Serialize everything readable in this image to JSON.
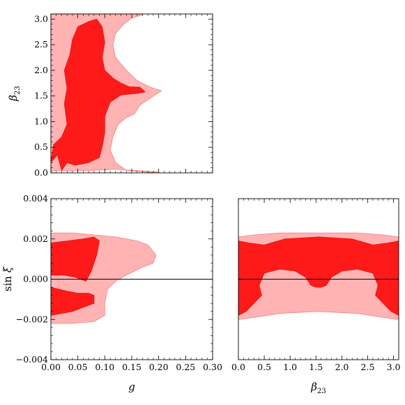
{
  "chart_data": [
    {
      "type": "contour",
      "panel": "top-left",
      "xlabel": "",
      "ylabel": "β23",
      "xlim": [
        0,
        0.3
      ],
      "ylim": [
        0,
        3.1
      ],
      "xticks": [],
      "yticks": [
        "0.0",
        "0.5",
        "1.0",
        "1.5",
        "2.0",
        "2.5",
        "3.0"
      ],
      "ytick_values": [
        0.0,
        0.5,
        1.0,
        1.5,
        2.0,
        2.5,
        3.0
      ],
      "regions": [
        {
          "level": "outer",
          "color": "#ffb3b3",
          "points": [
            [
              0,
              0
            ],
            [
              0.005,
              0.05
            ],
            [
              0.04,
              0.04
            ],
            [
              0.08,
              0.05
            ],
            [
              0.12,
              0.07
            ],
            [
              0.17,
              0.04
            ],
            [
              0.2,
              0.02
            ],
            [
              0.2,
              0.0
            ],
            [
              0.17,
              0.02
            ],
            [
              0.14,
              0.05
            ],
            [
              0.12,
              0.2
            ],
            [
              0.11,
              0.45
            ],
            [
              0.115,
              0.7
            ],
            [
              0.125,
              0.95
            ],
            [
              0.14,
              1.08
            ],
            [
              0.155,
              1.15
            ],
            [
              0.165,
              1.32
            ],
            [
              0.185,
              1.46
            ],
            [
              0.205,
              1.6
            ],
            [
              0.185,
              1.67
            ],
            [
              0.16,
              1.8
            ],
            [
              0.14,
              2.0
            ],
            [
              0.12,
              2.25
            ],
            [
              0.115,
              2.5
            ],
            [
              0.12,
              2.72
            ],
            [
              0.135,
              2.9
            ],
            [
              0.15,
              3.02
            ],
            [
              0.17,
              3.08
            ],
            [
              0.17,
              3.1
            ],
            [
              0.0,
              3.1
            ]
          ]
        },
        {
          "level": "inner",
          "color": "#ff1a1a",
          "points": [
            [
              0.0,
              0.2
            ],
            [
              0.005,
              0.55
            ],
            [
              0.02,
              0.7
            ],
            [
              0.03,
              0.95
            ],
            [
              0.025,
              1.35
            ],
            [
              0.03,
              1.65
            ],
            [
              0.025,
              2.0
            ],
            [
              0.035,
              2.3
            ],
            [
              0.04,
              2.6
            ],
            [
              0.05,
              2.85
            ],
            [
              0.07,
              2.95
            ],
            [
              0.085,
              3.0
            ],
            [
              0.095,
              2.85
            ],
            [
              0.1,
              2.55
            ],
            [
              0.095,
              2.25
            ],
            [
              0.1,
              2.0
            ],
            [
              0.115,
              1.85
            ],
            [
              0.13,
              1.75
            ],
            [
              0.145,
              1.68
            ],
            [
              0.165,
              1.67
            ],
            [
              0.175,
              1.58
            ],
            [
              0.16,
              1.55
            ],
            [
              0.13,
              1.52
            ],
            [
              0.11,
              1.38
            ],
            [
              0.1,
              1.1
            ],
            [
              0.1,
              0.78
            ],
            [
              0.095,
              0.5
            ],
            [
              0.09,
              0.3
            ],
            [
              0.07,
              0.2
            ],
            [
              0.045,
              0.15
            ],
            [
              0.03,
              0.2
            ],
            [
              0.02,
              0.05
            ],
            [
              0.012,
              0.35
            ]
          ]
        }
      ]
    },
    {
      "type": "contour",
      "panel": "bottom-left",
      "xlabel": "g",
      "ylabel": "sin ξ",
      "xlim": [
        0,
        0.3
      ],
      "ylim": [
        -0.004,
        0.004
      ],
      "xticks": [
        "0.00",
        "0.05",
        "0.10",
        "0.15",
        "0.20",
        "0.25",
        "0.30"
      ],
      "xtick_values": [
        0,
        0.05,
        0.1,
        0.15,
        0.2,
        0.25,
        0.3
      ],
      "yticks": [
        "0.004",
        "0.002",
        "0.000",
        "−0.002",
        "−0.004"
      ],
      "ytick_values": [
        0.004,
        0.002,
        0.0,
        -0.002,
        -0.004
      ],
      "hline": 0.0,
      "regions": [
        {
          "level": "outer",
          "color": "#ffb3b3",
          "points": [
            [
              0,
              0.0023
            ],
            [
              0.04,
              0.0023
            ],
            [
              0.08,
              0.0022
            ],
            [
              0.12,
              0.0021
            ],
            [
              0.16,
              0.0019
            ],
            [
              0.18,
              0.0017
            ],
            [
              0.195,
              0.0012
            ],
            [
              0.19,
              0.0008
            ],
            [
              0.17,
              0.0006
            ],
            [
              0.14,
              0.0002
            ],
            [
              0.12,
              -0.0001
            ],
            [
              0.105,
              -0.0005
            ],
            [
              0.1,
              -0.0012
            ],
            [
              0.1,
              -0.0018
            ],
            [
              0.08,
              -0.0021
            ],
            [
              0.04,
              -0.0022
            ],
            [
              0.0,
              -0.0022
            ]
          ]
        },
        {
          "level": "inner",
          "color": "#ff1a1a",
          "points": [
            [
              0,
              0.0018
            ],
            [
              0.03,
              0.0019
            ],
            [
              0.06,
              0.002
            ],
            [
              0.08,
              0.0021
            ],
            [
              0.09,
              0.0019
            ],
            [
              0.085,
              0.0012
            ],
            [
              0.075,
              0.0004
            ],
            [
              0.065,
              -0.0001
            ],
            [
              0.045,
              0.0001
            ],
            [
              0.025,
              0.0002
            ],
            [
              0.0,
              0.0002
            ]
          ]
        },
        {
          "level": "inner",
          "color": "#ff1a1a",
          "points": [
            [
              0,
              -0.0004
            ],
            [
              0.03,
              -0.0006
            ],
            [
              0.05,
              -0.0007
            ],
            [
              0.07,
              -0.0007
            ],
            [
              0.08,
              -0.0008
            ],
            [
              0.08,
              -0.0012
            ],
            [
              0.06,
              -0.0014
            ],
            [
              0.04,
              -0.0016
            ],
            [
              0.0,
              -0.0018
            ]
          ]
        }
      ]
    },
    {
      "type": "contour",
      "panel": "bottom-right",
      "xlabel": "β23",
      "ylabel": "",
      "xlim": [
        0,
        3.1
      ],
      "ylim": [
        -0.004,
        0.004
      ],
      "xticks": [
        "0.0",
        "0.5",
        "1.0",
        "1.5",
        "2.0",
        "2.5",
        "3.0"
      ],
      "xtick_values": [
        0.0,
        0.5,
        1.0,
        1.5,
        2.0,
        2.5,
        3.0
      ],
      "yticks": [],
      "hline": 0.0,
      "regions": [
        {
          "level": "outer",
          "color": "#ffb3b3",
          "points": [
            [
              0,
              0.0021
            ],
            [
              0.3,
              0.0022
            ],
            [
              0.8,
              0.0023
            ],
            [
              1.55,
              0.0023
            ],
            [
              2.3,
              0.0023
            ],
            [
              2.8,
              0.0022
            ],
            [
              3.1,
              0.0021
            ],
            [
              3.1,
              -0.002
            ],
            [
              2.8,
              -0.0019
            ],
            [
              2.3,
              -0.0017
            ],
            [
              1.55,
              -0.0016
            ],
            [
              0.8,
              -0.0017
            ],
            [
              0.3,
              -0.0019
            ],
            [
              0,
              -0.002
            ]
          ]
        },
        {
          "level": "inner",
          "color": "#ff1a1a",
          "points": [
            [
              0,
              0.0019
            ],
            [
              0.2,
              0.0018
            ],
            [
              0.5,
              0.0017
            ],
            [
              0.9,
              0.002
            ],
            [
              1.55,
              0.0021
            ],
            [
              2.2,
              0.002
            ],
            [
              2.6,
              0.0017
            ],
            [
              2.9,
              0.0018
            ],
            [
              3.1,
              0.0019
            ],
            [
              3.1,
              -0.0018
            ],
            [
              2.95,
              -0.0016
            ],
            [
              2.8,
              -0.0012
            ],
            [
              2.65,
              -0.0008
            ],
            [
              2.7,
              -0.0003
            ],
            [
              2.6,
              0.0003
            ],
            [
              2.3,
              0.0005
            ],
            [
              2.0,
              0.0004
            ],
            [
              1.8,
              0.0001
            ],
            [
              1.7,
              -0.0003
            ],
            [
              1.6,
              -0.0004
            ],
            [
              1.5,
              -0.0004
            ],
            [
              1.4,
              -0.0003
            ],
            [
              1.3,
              0.0001
            ],
            [
              1.1,
              0.0004
            ],
            [
              0.8,
              0.0005
            ],
            [
              0.5,
              0.0003
            ],
            [
              0.4,
              -0.0003
            ],
            [
              0.45,
              -0.0008
            ],
            [
              0.3,
              -0.0012
            ],
            [
              0.15,
              -0.0016
            ],
            [
              0,
              -0.0018
            ]
          ]
        }
      ]
    }
  ]
}
